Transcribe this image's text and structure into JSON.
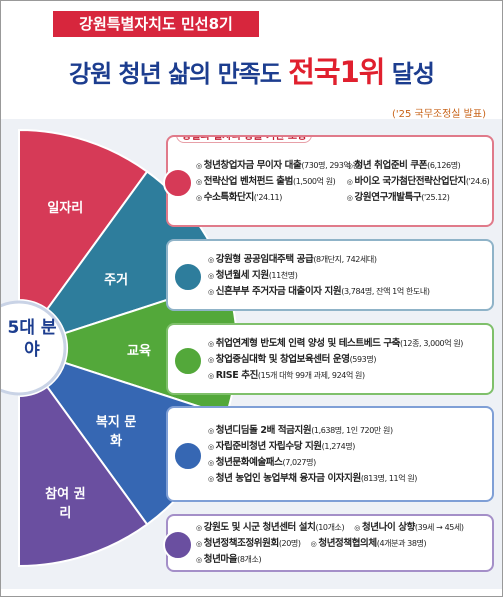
{
  "header": {
    "badge": "강원특별자치도 민선8기",
    "title_start": "강원 청년 삶의 만족도 ",
    "title_highlight": "전국1위",
    "title_end": " 달성",
    "source": "('25 국무조정실 발표)"
  },
  "wheel": {
    "center": "5대 분야",
    "segments": [
      "일자리",
      "주거",
      "교육",
      "복지 문화",
      "참여 권리"
    ]
  },
  "panels": [
    {
      "heading": "양질의 일자리 창출 기반 조성",
      "items": [
        {
          "name": "청년창업자금 무이자 대출",
          "detail": "(730명, 293억 원)"
        },
        {
          "name": "청년 취업준비 쿠폰",
          "detail": "(6,126명)"
        },
        {
          "name": "전략산업 벤처펀드 출범",
          "detail": "(1,500억 원)"
        },
        {
          "name": "바이오 국가첨단전략산업단지",
          "detail": "('24.6)"
        },
        {
          "name": "수소특화단지",
          "detail": "('24.11)"
        },
        {
          "name": "강원연구개발특구",
          "detail": "('25.12)"
        }
      ]
    },
    {
      "items": [
        {
          "name": "강원형 공공임대주택 공급",
          "detail": "(8개단지, 742세대)"
        },
        {
          "name": "청년월세 지원",
          "detail": "(11천명)"
        },
        {
          "name": "신혼부부 주거자금 대출이자 지원",
          "detail": "(3,784명, 잔액 1억 한도내)"
        }
      ]
    },
    {
      "items": [
        {
          "name": "취업연계형 반도체 인력 양성 및 테스트베드 구축",
          "detail": "(12종, 3,000억 원)"
        },
        {
          "name": "창업중심대학 및 창업보육센터 운영",
          "detail": "(593명)"
        },
        {
          "name": "RISE 추진",
          "detail": "(15개 대학 99개 과제, 924억 원)"
        }
      ]
    },
    {
      "items": [
        {
          "name": "청년디딤돌 2배 적금지원",
          "detail": "(1,638명, 1인 720만 원)"
        },
        {
          "name": "자립준비청년 자립수당 지원",
          "detail": "(1,274명)"
        },
        {
          "name": "청년문화예술패스",
          "detail": "(7,027명)"
        },
        {
          "name": "청년 농업인 농업부채 융자금 이자지원",
          "detail": "(813명, 11억 원)"
        }
      ]
    },
    {
      "items": [
        {
          "name": "강원도 및 시군 청년센터 설치",
          "detail": "(10개소)"
        },
        {
          "name": "청년나이 상향",
          "detail": "(39세 → 45세)"
        },
        {
          "name": "청년정책조정위원회",
          "detail": "(20명)"
        },
        {
          "name": "청년정책협의체",
          "detail": "(4개분과 38명)"
        },
        {
          "name": "청년마을",
          "detail": "(8개소)"
        }
      ]
    }
  ]
}
